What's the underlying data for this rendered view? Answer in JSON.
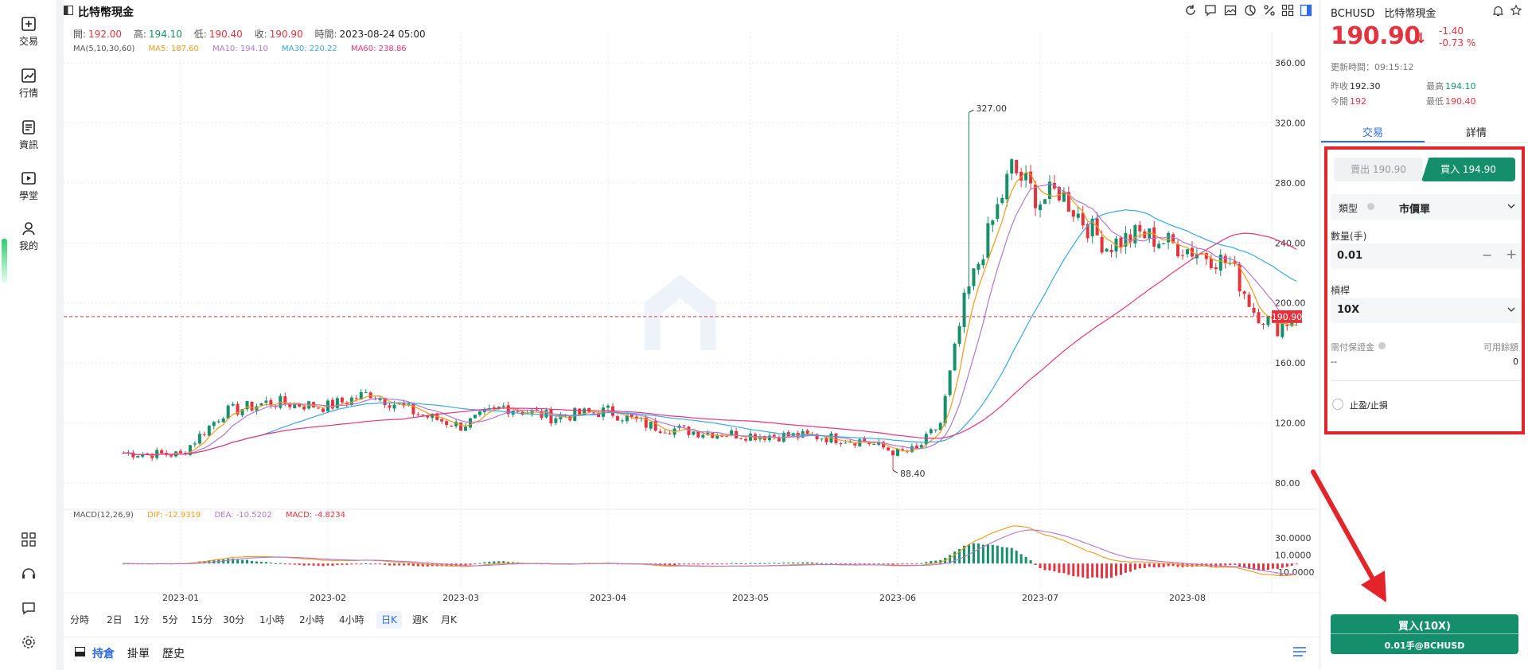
{
  "nav": {
    "items": [
      {
        "label": "交易",
        "icon": "plus-square-icon"
      },
      {
        "label": "行情",
        "icon": "chart-icon"
      },
      {
        "label": "資訊",
        "icon": "news-icon"
      },
      {
        "label": "學堂",
        "icon": "play-icon"
      },
      {
        "label": "我的",
        "icon": "user-icon"
      }
    ],
    "bottom_icons": [
      "apps-icon",
      "headset-icon",
      "chat-icon",
      "settings-icon"
    ]
  },
  "header": {
    "title": "比特幣現金",
    "toolbar_icons": [
      "refresh-icon",
      "draw-icon",
      "image-icon",
      "indicator-icon",
      "percent-icon",
      "layout-icon",
      "panel-icon"
    ]
  },
  "ohlc": {
    "open_label": "開:",
    "open": "192.00",
    "high_label": "高:",
    "high": "194.10",
    "low_label": "低:",
    "low": "190.40",
    "close_label": "收:",
    "close": "190.90",
    "time_label": "時間:",
    "time": "2023-08-24 05:00"
  },
  "ma_legend": {
    "name": "MA(5,10,30,60)",
    "ma5": "MA5: 187.60",
    "ma10": "MA10: 194.10",
    "ma30": "MA30: 220.22",
    "ma60": "MA60: 238.86"
  },
  "macd_legend": {
    "name": "MACD(12,26,9)",
    "dif": "DIF: -12.9319",
    "dea": "DEA: -10.5202",
    "macd": "MACD: -4.8234"
  },
  "colors": {
    "up": "#15906a",
    "down": "#e2343f",
    "ma5": "#f39a1c",
    "ma10": "#b476d6",
    "ma30": "#38a7e8",
    "ma60": "#e6357f"
  },
  "chart_data": {
    "type": "candlestick",
    "x_axis_labels": [
      "2023-01",
      "2023-02",
      "2023-03",
      "2023-04",
      "2023-05",
      "2023-06",
      "2023-07",
      "2023-08"
    ],
    "y_ticks": [
      "360.00",
      "320.00",
      "280.00",
      "240.00",
      "200.00",
      "160.00",
      "120.00",
      "80.00"
    ],
    "ylim": [
      80,
      360
    ],
    "current_price_label": "190.90",
    "high_marker": "327.00",
    "low_marker": "88.40",
    "series_close_anchors": [
      {
        "x": "2022-12-20",
        "y": 100
      },
      {
        "x": "2023-01-01",
        "y": 99
      },
      {
        "x": "2023-01-10",
        "y": 127
      },
      {
        "x": "2023-01-20",
        "y": 134
      },
      {
        "x": "2023-02-01",
        "y": 131
      },
      {
        "x": "2023-02-10",
        "y": 140
      },
      {
        "x": "2023-02-20",
        "y": 126
      },
      {
        "x": "2023-03-01",
        "y": 118
      },
      {
        "x": "2023-03-10",
        "y": 131
      },
      {
        "x": "2023-03-20",
        "y": 124
      },
      {
        "x": "2023-04-01",
        "y": 128
      },
      {
        "x": "2023-04-10",
        "y": 118
      },
      {
        "x": "2023-04-20",
        "y": 114
      },
      {
        "x": "2023-05-01",
        "y": 112
      },
      {
        "x": "2023-05-15",
        "y": 111
      },
      {
        "x": "2023-05-25",
        "y": 108
      },
      {
        "x": "2023-06-01",
        "y": 100
      },
      {
        "x": "2023-06-05",
        "y": 102
      },
      {
        "x": "2023-06-10",
        "y": 120
      },
      {
        "x": "2023-06-15",
        "y": 200
      },
      {
        "x": "2023-06-20",
        "y": 245
      },
      {
        "x": "2023-06-25",
        "y": 290
      },
      {
        "x": "2023-07-01",
        "y": 268
      },
      {
        "x": "2023-07-05",
        "y": 275
      },
      {
        "x": "2023-07-10",
        "y": 255
      },
      {
        "x": "2023-07-15",
        "y": 238
      },
      {
        "x": "2023-07-22",
        "y": 246
      },
      {
        "x": "2023-07-30",
        "y": 238
      },
      {
        "x": "2023-08-05",
        "y": 232
      },
      {
        "x": "2023-08-10",
        "y": 226
      },
      {
        "x": "2023-08-15",
        "y": 195
      },
      {
        "x": "2023-08-20",
        "y": 184
      },
      {
        "x": "2023-08-24",
        "y": 190.9
      }
    ],
    "macd_ticks": [
      "30.0000",
      "10.0000",
      "-10.0000"
    ]
  },
  "timeframes": [
    "分時",
    "2日",
    "1分",
    "5分",
    "15分",
    "30分",
    "1小時",
    "2小時",
    "4小時",
    "日K",
    "週K",
    "月K"
  ],
  "timeframe_active": "日K",
  "position_tabs": [
    "持倉",
    "掛單",
    "歷史"
  ],
  "panel": {
    "symbol": "BCHUSD",
    "symbol_name": "比特幣現金",
    "price": "190.90",
    "change": "-1.40",
    "change_pct": "-0.73 %",
    "update_time": "更新時間：09:15:12",
    "prev_close_label": "昨收",
    "prev_close": "192.30",
    "high_label": "最高",
    "high": "194.10",
    "open_label": "今開",
    "open": "192",
    "low_label": "最低",
    "low": "190.40",
    "tabs": [
      "交易",
      "詳情"
    ]
  },
  "order": {
    "sell_label": "賣出 190.90",
    "buy_label": "買入 194.90",
    "type_label": "類型",
    "type_value": "市價單",
    "qty_label": "數量(手)",
    "qty_value": "0.01",
    "leverage_label": "槓桿",
    "leverage_value": "10X",
    "margin_label": "需付保證金",
    "margin_value": "--",
    "available_label": "可用餘額",
    "available_value": "0",
    "tpsl_label": "止盈/止損"
  },
  "buy_button": {
    "line1": "買入(10X)",
    "line2": "0.01手@BCHUSD"
  }
}
